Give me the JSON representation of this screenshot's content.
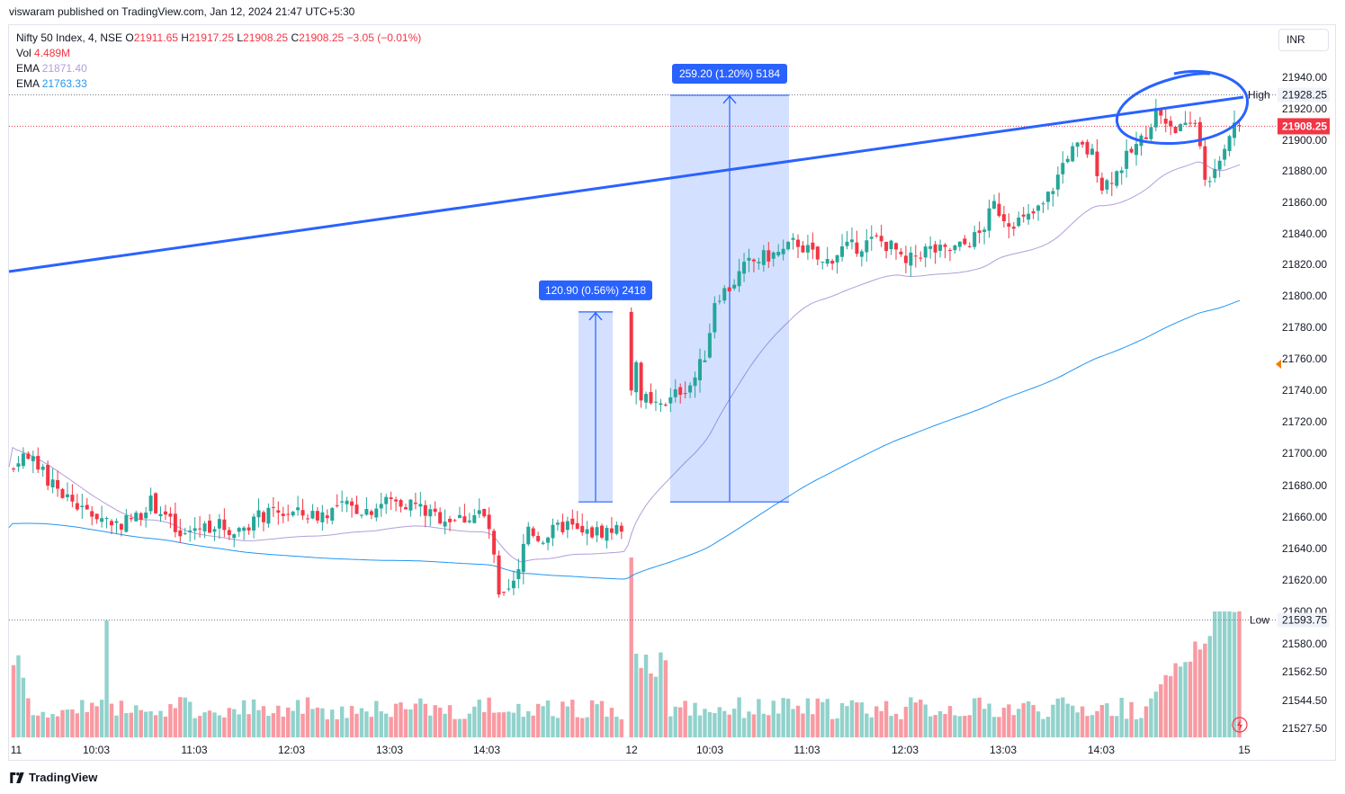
{
  "header": {
    "published": "viswaram published on TradingView.com, Jan 12, 2024 21:47 UTC+5:30"
  },
  "legend": {
    "symbol": "Nifty 50 Index, 4, NSE",
    "ohlc": {
      "o_label": "O",
      "o": "21911.65",
      "h_label": "H",
      "h": "21917.25",
      "l_label": "L",
      "l": "21908.25",
      "c_label": "C",
      "c": "21908.25",
      "change": "−3.05 (−0.01%)"
    },
    "vol_label": "Vol",
    "vol": "4.489M",
    "ema1_label": "EMA",
    "ema1": "21871.40",
    "ema2_label": "EMA",
    "ema2": "21763.33"
  },
  "currency": "INR",
  "footer": {
    "brand": "TradingView"
  },
  "colors": {
    "up": "#26a69a",
    "down": "#f23645",
    "ema_fast": "#b39ddb",
    "ema_slow": "#2196f3",
    "drawing": "#2962ff"
  },
  "chart_data": {
    "type": "candlestick",
    "interval": "4 minutes",
    "y_axis": {
      "range": [
        21527.5,
        21950
      ],
      "ticks": [
        "21940.00",
        "21920.00",
        "21900.00",
        "21880.00",
        "21860.00",
        "21840.00",
        "21820.00",
        "21800.00",
        "21780.00",
        "21760.00",
        "21740.00",
        "21720.00",
        "21700.00",
        "21680.00",
        "21660.00",
        "21640.00",
        "21620.00",
        "21600.00",
        "21580.00",
        "21562.50",
        "21544.50",
        "21527.50"
      ]
    },
    "x_axis": {
      "ticks": [
        "11",
        "10:03",
        "11:03",
        "12:03",
        "13:03",
        "14:03",
        "12",
        "10:03",
        "11:03",
        "12:03",
        "13:03",
        "14:03",
        "15"
      ]
    },
    "price_labels": {
      "high_label": "High",
      "high": "21928.25",
      "low_label": "Low",
      "low": "21593.75",
      "last": "21908.25"
    },
    "annotations": [
      {
        "type": "price_range",
        "text": "120.90 (0.56%) 2418",
        "from": 21669,
        "to": 21790
      },
      {
        "type": "price_range",
        "text": "259.20 (1.20%) 5184",
        "from": 21669,
        "to": 21928
      }
    ],
    "series": [
      {
        "name": "Nifty 50 Index",
        "kind": "candlestick"
      },
      {
        "name": "Vol",
        "kind": "volume"
      },
      {
        "name": "EMA",
        "kind": "line",
        "last": "21871.40"
      },
      {
        "name": "EMA",
        "kind": "line",
        "last": "21763.33"
      }
    ]
  }
}
